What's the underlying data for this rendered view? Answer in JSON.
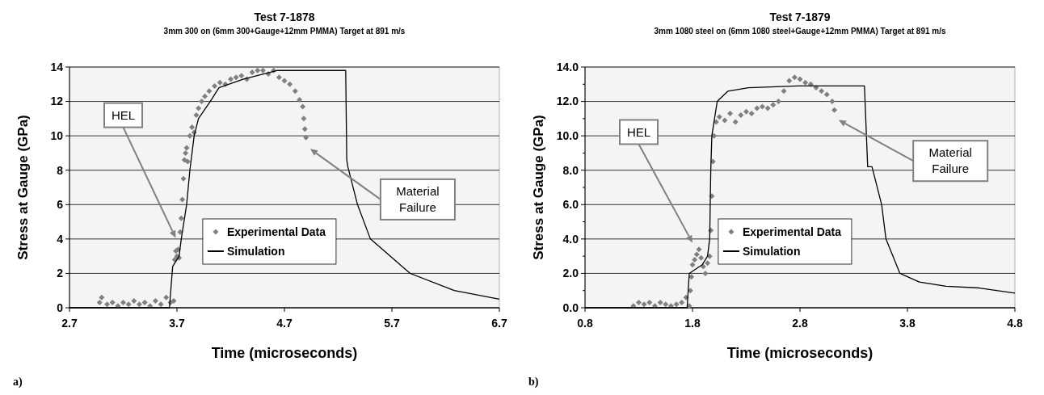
{
  "chart_data": [
    {
      "type": "scatter",
      "title": "Test 7-1878",
      "subtitle": "3mm 300 on (6mm 300+Gauge+12mm PMMA) Target at 891 m/s",
      "xlabel": "Time (microseconds)",
      "ylabel": "Stress at Gauge (GPa)",
      "xlim": [
        2.7,
        6.7
      ],
      "xticks": [
        2.7,
        3.7,
        4.7,
        5.7,
        6.7
      ],
      "ylim": [
        0,
        14
      ],
      "yticks": [
        0,
        2,
        4,
        6,
        8,
        10,
        12,
        14
      ],
      "grid": "y",
      "legend": "bottom",
      "series": [
        {
          "name": "Experimental Data",
          "marker": "diamond",
          "color": "#808080",
          "x": [
            2.98,
            3.0,
            3.05,
            3.1,
            3.15,
            3.2,
            3.25,
            3.3,
            3.35,
            3.4,
            3.45,
            3.5,
            3.55,
            3.6,
            3.64,
            3.67,
            3.68,
            3.69,
            3.7,
            3.71,
            3.72,
            3.73,
            3.74,
            3.75,
            3.76,
            3.77,
            3.78,
            3.79,
            3.8,
            3.82,
            3.84,
            3.86,
            3.88,
            3.9,
            3.93,
            3.96,
            4.0,
            4.05,
            4.1,
            4.15,
            4.2,
            4.25,
            4.3,
            4.35,
            4.4,
            4.45,
            4.5,
            4.55,
            4.6,
            4.65,
            4.7,
            4.75,
            4.8,
            4.84,
            4.87,
            4.88,
            4.89,
            4.9
          ],
          "values": [
            0.3,
            0.6,
            0.2,
            0.3,
            0.1,
            0.3,
            0.2,
            0.4,
            0.2,
            0.3,
            0.1,
            0.4,
            0.2,
            0.6,
            0.3,
            0.4,
            2.8,
            3.3,
            3.0,
            3.4,
            2.9,
            4.4,
            5.2,
            6.3,
            7.5,
            8.6,
            9.0,
            9.3,
            8.5,
            10.0,
            10.5,
            10.2,
            11.2,
            11.6,
            12.0,
            12.3,
            12.6,
            12.9,
            13.1,
            13.0,
            13.3,
            13.4,
            13.5,
            13.3,
            13.7,
            13.8,
            13.8,
            13.6,
            13.8,
            13.4,
            13.2,
            13.0,
            12.6,
            12.1,
            11.7,
            11.0,
            10.4,
            9.9
          ]
        },
        {
          "name": "Simulation",
          "type": "line",
          "marker": "none",
          "color": "#000000",
          "x": [
            2.7,
            3.63,
            3.66,
            3.72,
            3.74,
            3.79,
            3.82,
            3.86,
            3.9,
            4.01,
            4.09,
            4.32,
            4.63,
            5.27,
            5.28,
            5.29,
            5.38,
            5.5,
            5.87,
            6.28,
            6.7
          ],
          "values": [
            0,
            0,
            2.4,
            3.0,
            4,
            6,
            8,
            10,
            11,
            12,
            12.8,
            13.3,
            13.8,
            13.8,
            8.6,
            8.2,
            6,
            4,
            2,
            1.0,
            0.5
          ]
        }
      ],
      "annotations": [
        "HEL",
        "Material Failure",
        "a)"
      ]
    },
    {
      "type": "scatter",
      "title": "Test 7-1879",
      "subtitle": "3mm 1080 steel on (6mm 1080 steel+Gauge+12mm PMMA) Target at 891 m/s",
      "xlabel": "Time (microseconds)",
      "ylabel": "Stress at Gauge (GPa)",
      "xlim": [
        0.8,
        4.8
      ],
      "xticks": [
        0.8,
        1.8,
        2.8,
        3.8,
        4.8
      ],
      "ylim": [
        0,
        14
      ],
      "yticks": [
        {
          "value": 0,
          "label": "0.0"
        },
        {
          "value": 1,
          "label": null
        },
        {
          "value": 2,
          "label": "2.0"
        },
        {
          "value": 3,
          "label": null
        },
        {
          "value": 4,
          "label": "4.0"
        },
        {
          "value": 5,
          "label": null
        },
        {
          "value": 6,
          "label": "6.0"
        },
        {
          "value": 7,
          "label": null
        },
        {
          "value": 8,
          "label": "8.0"
        },
        {
          "value": 9,
          "label": null
        },
        {
          "value": 10,
          "label": "10.0"
        },
        {
          "value": 11,
          "label": null
        },
        {
          "value": 12,
          "label": "12.0"
        },
        {
          "value": 13,
          "label": null
        },
        {
          "value": 14,
          "label": "14.0"
        }
      ],
      "grid": "y",
      "legend": "bottom",
      "series": [
        {
          "name": "Experimental Data",
          "marker": "diamond",
          "color": "#808080",
          "x": [
            1.25,
            1.3,
            1.35,
            1.4,
            1.45,
            1.5,
            1.55,
            1.6,
            1.65,
            1.7,
            1.74,
            1.77,
            1.78,
            1.79,
            1.8,
            1.82,
            1.84,
            1.86,
            1.88,
            1.9,
            1.92,
            1.94,
            1.96,
            1.97,
            1.98,
            1.99,
            2.0,
            2.02,
            2.05,
            2.1,
            2.15,
            2.2,
            2.25,
            2.3,
            2.35,
            2.4,
            2.45,
            2.5,
            2.55,
            2.6,
            2.65,
            2.7,
            2.75,
            2.8,
            2.85,
            2.9,
            2.95,
            3.0,
            3.05,
            3.1,
            3.12
          ],
          "values": [
            0.1,
            0.3,
            0.2,
            0.3,
            0.1,
            0.3,
            0.2,
            0.1,
            0.2,
            0.3,
            0.6,
            0.1,
            1.0,
            1.8,
            2.5,
            2.8,
            3.1,
            3.4,
            2.9,
            2.4,
            2.0,
            2.6,
            3.0,
            4.5,
            6.5,
            8.5,
            10.0,
            10.8,
            11.1,
            10.9,
            11.3,
            10.8,
            11.2,
            11.4,
            11.3,
            11.6,
            11.7,
            11.6,
            11.8,
            12.0,
            12.6,
            13.2,
            13.4,
            13.3,
            13.1,
            13.0,
            12.8,
            12.6,
            12.4,
            12.0,
            11.5
          ]
        },
        {
          "name": "Simulation",
          "type": "line",
          "marker": "none",
          "color": "#000000",
          "x": [
            0.8,
            1.75,
            1.77,
            1.89,
            1.94,
            1.96,
            1.97,
            1.98,
            2.03,
            2.13,
            2.32,
            2.78,
            3.4,
            3.43,
            3.47,
            3.56,
            3.6,
            3.73,
            3.91,
            4.16,
            4.47,
            4.8
          ],
          "values": [
            0,
            0,
            2,
            2.5,
            3,
            4,
            8,
            10,
            12,
            12.6,
            12.8,
            12.9,
            12.9,
            8.2,
            8.2,
            6,
            4,
            2,
            1.5,
            1.25,
            1.15,
            0.85
          ]
        }
      ],
      "annotations": [
        "HEL",
        "Material Failure",
        "b)"
      ]
    }
  ]
}
